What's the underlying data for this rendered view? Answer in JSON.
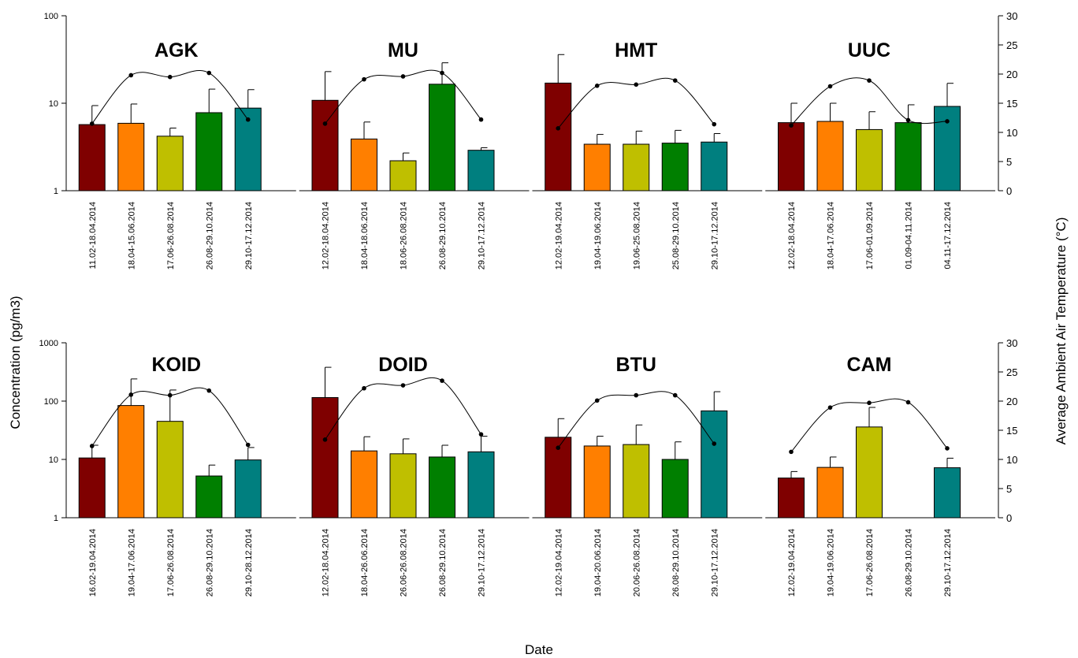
{
  "figure": {
    "ylabel": "Concentration (pg/m3)",
    "y2label": "Average Ambient Air Temperature (°C)",
    "xlabel": "Date",
    "bar_colors": [
      "#7f0000",
      "#ff7f00",
      "#bfbf00",
      "#007f00",
      "#007f7f"
    ],
    "line_color": "#000000"
  },
  "chart_data": [
    {
      "type": "bar",
      "row": 0,
      "ylim": [
        1,
        100
      ],
      "y_scale": "log",
      "yticks": [
        "1",
        "10",
        "100"
      ],
      "y2lim": [
        0,
        30
      ],
      "y2ticks": [
        "0",
        "5",
        "10",
        "15",
        "20",
        "25",
        "30"
      ],
      "groups": [
        {
          "label": "AGK",
          "categories": [
            "11.02-18.04.2014",
            "18.04-15.06.2014",
            "17.06-26.08.2014",
            "26.08-29.10.2014",
            "29.10-17.12.2014"
          ],
          "values": [
            5.7,
            5.9,
            4.2,
            7.8,
            8.8
          ],
          "errors": [
            9.4,
            9.8,
            5.2,
            14.5,
            14.3
          ],
          "temperature": [
            11.5,
            19.8,
            19.5,
            20.2,
            12.2
          ]
        },
        {
          "label": "MU",
          "categories": [
            "12.02-18.04.2014",
            "18.04-18.06.2014",
            "18.06-26.08.2014",
            "26.08-29.10.2014",
            "29.10-17.12.2014"
          ],
          "values": [
            10.8,
            3.9,
            2.2,
            16.5,
            2.9
          ],
          "errors": [
            23,
            6.1,
            2.7,
            29,
            3.1
          ],
          "temperature": [
            11.5,
            19.1,
            19.6,
            20.2,
            12.2
          ]
        },
        {
          "label": "HMT",
          "categories": [
            "12.02-19.04.2014",
            "19.04-19.06.2014",
            "19.06-25.08.2014",
            "25.08-29.10.2014",
            "29.10-17.12.2014"
          ],
          "values": [
            17,
            3.4,
            3.4,
            3.5,
            3.6
          ],
          "errors": [
            36,
            4.4,
            4.8,
            4.9,
            4.5
          ],
          "temperature": [
            10.7,
            18,
            18.2,
            18.9,
            11.4
          ]
        },
        {
          "label": "UUC",
          "categories": [
            "12.02-18.04.2014",
            "18.04-17.06.2014",
            "17.06-01.09.2014",
            "01.09-04.11.2014",
            "04.11-17.12.2014"
          ],
          "values": [
            6.0,
            6.2,
            5.0,
            6.0,
            9.2
          ],
          "errors": [
            10.0,
            10.0,
            8.0,
            9.6,
            16.9
          ],
          "temperature": [
            11.2,
            17.9,
            18.9,
            12.1,
            11.9
          ]
        }
      ]
    },
    {
      "type": "bar",
      "row": 1,
      "ylim": [
        1,
        1000
      ],
      "y_scale": "log",
      "yticks": [
        "1",
        "10",
        "100",
        "1000"
      ],
      "y2lim": [
        0,
        30
      ],
      "y2ticks": [
        "0",
        "5",
        "10",
        "15",
        "20",
        "25",
        "30"
      ],
      "groups": [
        {
          "label": "KOID",
          "categories": [
            "16.02-19.04.2014",
            "19.04-17.06.2014",
            "17.06-26.08.2014",
            "26.08-29.10.2014",
            "29.10-28.12.2014"
          ],
          "values": [
            10.6,
            84,
            45,
            5.2,
            9.8
          ],
          "errors": [
            17.5,
            240,
            155,
            8,
            16
          ],
          "temperature": [
            12.3,
            21.1,
            21.0,
            21.8,
            12.5
          ]
        },
        {
          "label": "DOID",
          "categories": [
            "12.02-18.04.2014",
            "18.04-26.06.2014",
            "26.06-26.08.2014",
            "26.08-29.10.2014",
            "29.10-17.12.2014"
          ],
          "values": [
            115,
            14,
            12.5,
            11,
            13.5
          ],
          "errors": [
            380,
            24.5,
            22.5,
            17.5,
            25
          ],
          "temperature": [
            13.4,
            22.2,
            22.7,
            23.5,
            14.3
          ]
        },
        {
          "label": "BTU",
          "categories": [
            "12.02-19.04.2014",
            "19.04-20.06.2014",
            "20.06-26.08.2014",
            "26.08-29.10.2014",
            "29.10-17.12.2014"
          ],
          "values": [
            24,
            17,
            18,
            10,
            68
          ],
          "errors": [
            50,
            25,
            39,
            20,
            145
          ],
          "temperature": [
            12.0,
            20.1,
            21.0,
            21.0,
            12.7
          ]
        },
        {
          "label": "CAM",
          "categories": [
            "12.02-19.04.2014",
            "19.04-19.06.2014",
            "17.06-26.08.2014",
            "26.08-29.10.2014",
            "29.10-17.12.2014"
          ],
          "values": [
            4.8,
            7.3,
            36,
            null,
            7.2
          ],
          "errors": [
            6.2,
            11,
            78,
            null,
            10.5
          ],
          "temperature": [
            11.3,
            18.9,
            19.7,
            19.8,
            11.9
          ]
        }
      ]
    }
  ]
}
